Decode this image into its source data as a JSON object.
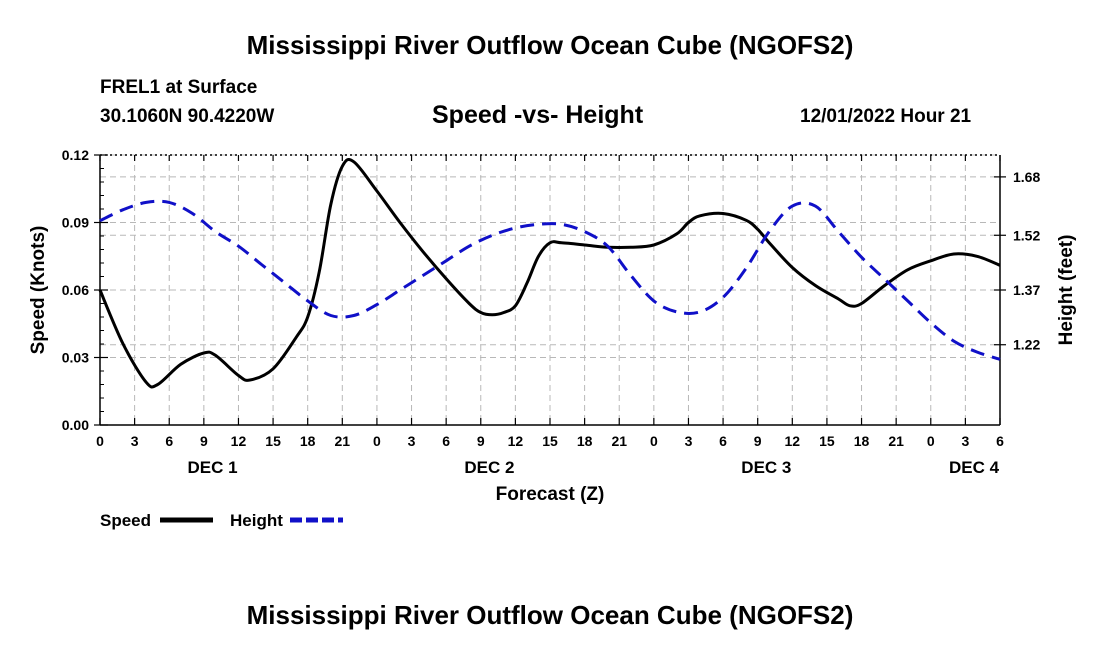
{
  "title": "Mississippi River Outflow Ocean Cube (NGOFS2)",
  "bottom_title": "Mississippi River Outflow Ocean Cube (NGOFS2)",
  "station": "FREL1 at Surface",
  "coords": "30.1060N  90.4220W",
  "subtitle": "Speed -vs- Height",
  "datetime": "12/01/2022 Hour 21",
  "chart_data": {
    "type": "line",
    "title": "Speed -vs- Height",
    "xlabel": "Forecast (Z)",
    "ylabel": "Speed (Knots)",
    "y2label": "Height (feet)",
    "x_unit": "hours since DEC 1 00Z",
    "xlim": [
      0,
      78
    ],
    "ylim": [
      0,
      0.12
    ],
    "y2lim": [
      1.0,
      1.74
    ],
    "grid": true,
    "x_ticks": [
      0,
      3,
      6,
      9,
      12,
      15,
      18,
      21,
      24,
      27,
      30,
      33,
      36,
      39,
      42,
      45,
      48,
      51,
      54,
      57,
      60,
      63,
      66,
      69,
      72,
      75,
      78
    ],
    "x_tick_labels": [
      "0",
      "3",
      "6",
      "9",
      "12",
      "15",
      "18",
      "21",
      "0",
      "3",
      "6",
      "9",
      "12",
      "15",
      "18",
      "21",
      "0",
      "3",
      "6",
      "9",
      "12",
      "15",
      "18",
      "21",
      "0",
      "3",
      "6"
    ],
    "y_ticks": [
      0,
      0.03,
      0.06,
      0.09,
      0.12
    ],
    "y_tick_labels": [
      "0.00",
      "0.03",
      "0.06",
      "0.09",
      "0.12"
    ],
    "y2_ticks": [
      1.22,
      1.37,
      1.52,
      1.68
    ],
    "y2_tick_labels": [
      "1.22",
      "1.37",
      "1.52",
      "1.68"
    ],
    "day_labels": [
      {
        "label": "DEC 1",
        "x": 9.75
      },
      {
        "label": "DEC 2",
        "x": 33.75
      },
      {
        "label": "DEC 3",
        "x": 57.75
      },
      {
        "label": "DEC 4",
        "x": 75.75
      }
    ],
    "legend": [
      {
        "name": "Speed",
        "color": "#000000",
        "style": "solid"
      },
      {
        "name": "Height",
        "color": "#1010c8",
        "style": "dashed"
      }
    ],
    "series": [
      {
        "name": "Speed",
        "axis": "left",
        "color": "#000000",
        "style": "solid",
        "x": [
          0,
          2,
          4,
          5,
          7,
          9,
          10,
          12,
          13,
          15,
          17,
          18,
          19,
          20,
          21,
          22,
          24,
          26,
          28,
          30,
          32,
          33,
          34,
          35,
          36,
          37,
          38,
          39,
          40,
          42,
          44,
          46,
          48,
          50,
          51,
          52,
          54,
          56,
          57,
          58,
          60,
          62,
          64,
          65,
          66,
          68,
          70,
          72,
          74,
          76,
          78
        ],
        "values": [
          0.06,
          0.036,
          0.019,
          0.018,
          0.027,
          0.032,
          0.031,
          0.022,
          0.02,
          0.025,
          0.039,
          0.048,
          0.068,
          0.098,
          0.115,
          0.117,
          0.104,
          0.09,
          0.077,
          0.065,
          0.054,
          0.05,
          0.049,
          0.05,
          0.053,
          0.063,
          0.075,
          0.081,
          0.081,
          0.08,
          0.079,
          0.079,
          0.08,
          0.085,
          0.09,
          0.093,
          0.094,
          0.091,
          0.087,
          0.081,
          0.07,
          0.062,
          0.056,
          0.053,
          0.054,
          0.062,
          0.069,
          0.073,
          0.076,
          0.075,
          0.071
        ]
      },
      {
        "name": "Height",
        "axis": "right",
        "color": "#1010c8",
        "style": "dashed",
        "x": [
          0,
          2,
          4,
          6,
          8,
          10,
          12,
          14,
          16,
          18,
          20,
          22,
          24,
          26,
          28,
          30,
          32,
          34,
          36,
          38,
          40,
          42,
          44,
          46,
          48,
          50,
          52,
          54,
          56,
          58,
          60,
          62,
          64,
          66,
          68,
          70,
          72,
          74,
          76,
          78
        ],
        "values": [
          1.56,
          1.59,
          1.61,
          1.61,
          1.58,
          1.53,
          1.49,
          1.44,
          1.39,
          1.34,
          1.3,
          1.3,
          1.33,
          1.37,
          1.41,
          1.45,
          1.49,
          1.52,
          1.54,
          1.55,
          1.55,
          1.53,
          1.49,
          1.41,
          1.34,
          1.31,
          1.31,
          1.35,
          1.43,
          1.53,
          1.6,
          1.6,
          1.53,
          1.46,
          1.4,
          1.34,
          1.28,
          1.23,
          1.2,
          1.18
        ]
      }
    ]
  }
}
